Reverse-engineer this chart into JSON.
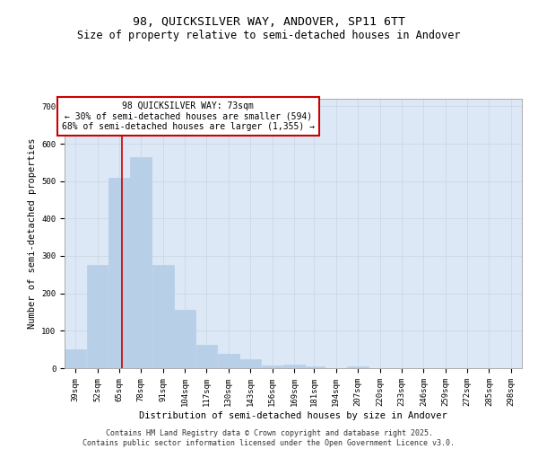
{
  "title1": "98, QUICKSILVER WAY, ANDOVER, SP11 6TT",
  "title2": "Size of property relative to semi-detached houses in Andover",
  "xlabel": "Distribution of semi-detached houses by size in Andover",
  "ylabel": "Number of semi-detached properties",
  "bar_color": "#b8cfe8",
  "grid_color": "#c8d4e0",
  "background_color": "#dce8f5",
  "bin_labels": [
    "39sqm",
    "52sqm",
    "65sqm",
    "78sqm",
    "91sqm",
    "104sqm",
    "117sqm",
    "130sqm",
    "143sqm",
    "156sqm",
    "169sqm",
    "181sqm",
    "194sqm",
    "207sqm",
    "220sqm",
    "233sqm",
    "246sqm",
    "259sqm",
    "272sqm",
    "285sqm",
    "298sqm"
  ],
  "bar_values": [
    50,
    275,
    510,
    565,
    275,
    155,
    63,
    38,
    25,
    8,
    10,
    5,
    0,
    5,
    0,
    0,
    0,
    0,
    0,
    0,
    0
  ],
  "bin_edges": [
    39,
    52,
    65,
    78,
    91,
    104,
    117,
    130,
    143,
    156,
    169,
    181,
    194,
    207,
    220,
    233,
    246,
    259,
    272,
    285,
    298
  ],
  "vline_x": 73,
  "vline_color": "#cc0000",
  "annotation_text": "98 QUICKSILVER WAY: 73sqm\n← 30% of semi-detached houses are smaller (594)\n68% of semi-detached houses are larger (1,355) →",
  "annotation_box_color": "#cc0000",
  "ylim": [
    0,
    720
  ],
  "yticks": [
    0,
    100,
    200,
    300,
    400,
    500,
    600,
    700
  ],
  "footer_text": "Contains HM Land Registry data © Crown copyright and database right 2025.\nContains public sector information licensed under the Open Government Licence v3.0.",
  "title1_fontsize": 9.5,
  "title2_fontsize": 8.5,
  "xlabel_fontsize": 7.5,
  "ylabel_fontsize": 7.5,
  "tick_fontsize": 6.5,
  "annotation_fontsize": 7,
  "footer_fontsize": 6
}
